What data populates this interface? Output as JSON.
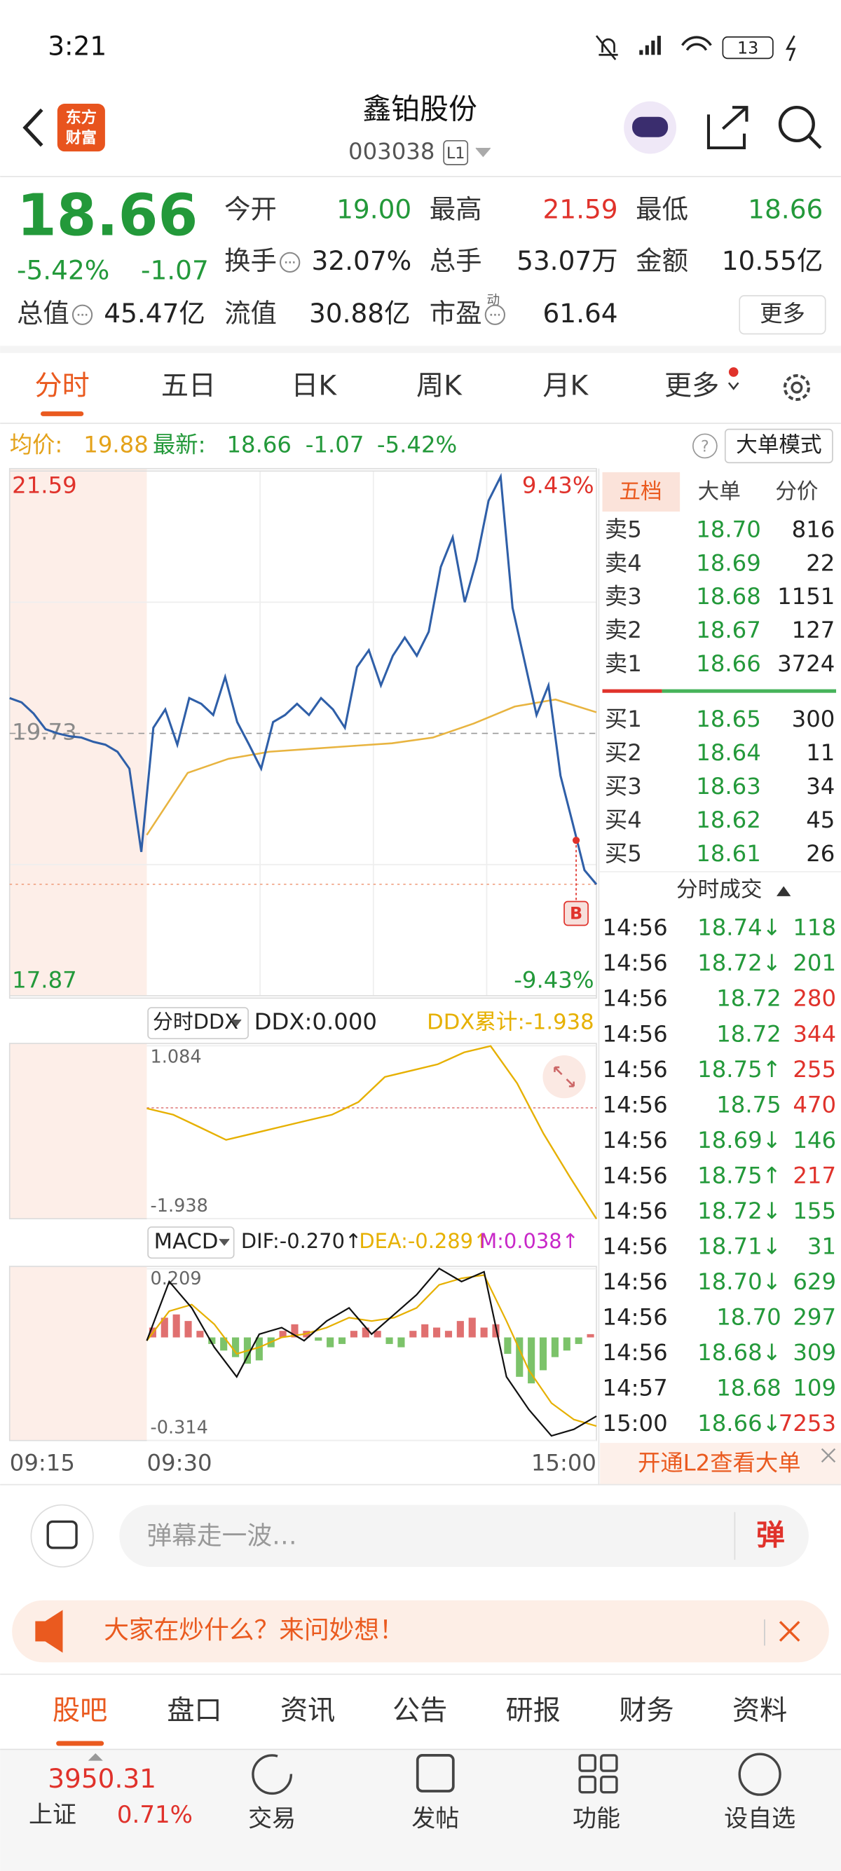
{
  "status_bar": {
    "time": "3:21",
    "battery": "13"
  },
  "header": {
    "logo": [
      "东方",
      "财富"
    ],
    "title": "鑫铂股份",
    "code": "003038",
    "level": "L1"
  },
  "quote": {
    "price": "18.66",
    "change_pct": "-5.42%",
    "change": "-1.07",
    "fields": [
      {
        "label": "今开",
        "value": "19.00",
        "color": "green"
      },
      {
        "label": "最高",
        "value": "21.59",
        "color": "red"
      },
      {
        "label": "最低",
        "value": "18.66",
        "color": "green"
      },
      {
        "label": "换手",
        "value": "32.07%",
        "color": "black"
      },
      {
        "label": "总手",
        "value": "53.07万",
        "color": "black"
      },
      {
        "label": "金额",
        "value": "10.55亿",
        "color": "black"
      },
      {
        "label": "总值",
        "value": "45.47亿",
        "color": "black"
      },
      {
        "label": "流值",
        "value": "30.88亿",
        "color": "black"
      },
      {
        "label": "市盈",
        "superscript": "动",
        "value": "61.64",
        "color": "black"
      }
    ],
    "more": "更多"
  },
  "tabs": {
    "items": [
      "分时",
      "五日",
      "日K",
      "周K",
      "月K",
      "更多"
    ],
    "active": 0
  },
  "info_bar": {
    "avg_label": "均价:",
    "avg": "19.88",
    "latest_label": "最新:",
    "latest": "18.66",
    "change": "-1.07",
    "change_pct": "-5.42%",
    "help": "?",
    "mode": "大单模式"
  },
  "price_chart": {
    "ylim": [
      17.87,
      21.59
    ],
    "yticks": [
      21.59,
      19.73,
      17.87
    ],
    "pct_labels": [
      "9.43%",
      "-9.43%"
    ],
    "marker": "B",
    "price": [
      19.98,
      19.95,
      19.87,
      19.76,
      19.73,
      19.71,
      19.7,
      19.67,
      19.65,
      19.6,
      19.48,
      18.89,
      19.77,
      19.9,
      19.65,
      19.98,
      19.94,
      19.86,
      20.13,
      19.81,
      19.65,
      19.48,
      19.81,
      19.86,
      19.94,
      19.86,
      19.98,
      19.9,
      19.77,
      20.2,
      20.32,
      20.07,
      20.28,
      20.41,
      20.28,
      20.45,
      20.91,
      21.12,
      20.66,
      20.96,
      21.38,
      21.55,
      20.62,
      20.24,
      19.86,
      20.07,
      19.43,
      19.1,
      18.76,
      18.66
    ],
    "avg": [
      19.01,
      19.45,
      19.55,
      19.6,
      19.62,
      19.64,
      19.66,
      19.7,
      19.8,
      19.92,
      19.97,
      19.88
    ]
  },
  "ddx_chart": {
    "selector": "分时DDX",
    "ddx": "DDX:0.000",
    "ddx_sum": "DDX累计:-1.938",
    "ylim": [
      -1.938,
      1.084
    ],
    "yticks": [
      1.084,
      -1.938
    ],
    "values": [
      -0.01,
      -0.12,
      -0.34,
      -0.56,
      -0.45,
      -0.34,
      -0.23,
      -0.12,
      0.1,
      0.54,
      0.65,
      0.76,
      0.97,
      1.08,
      0.43,
      -0.45,
      -1.21,
      -1.94
    ]
  },
  "macd_chart": {
    "selector": "MACD",
    "dif": "DIF:-0.270↑",
    "dea": "DEA:-0.289↑",
    "m": "M:0.038↑",
    "ylim": [
      -0.314,
      0.209
    ],
    "yticks": [
      0.209,
      -0.314
    ],
    "hist": [
      0.03,
      0.06,
      0.07,
      0.05,
      0.02,
      -0.02,
      -0.04,
      -0.06,
      -0.08,
      -0.07,
      -0.03,
      0.02,
      0.04,
      0.02,
      -0.01,
      -0.03,
      -0.02,
      0.02,
      0.03,
      0.02,
      -0.02,
      -0.03,
      0.02,
      0.04,
      0.03,
      0.02,
      0.05,
      0.06,
      0.03,
      0.04,
      -0.05,
      -0.12,
      -0.14,
      -0.1,
      -0.06,
      -0.04,
      -0.02,
      0.01
    ],
    "dif_line": [
      -0.01,
      0.17,
      0.09,
      -0.03,
      -0.12,
      0.01,
      0.03,
      -0.01,
      0.05,
      0.09,
      0.01,
      0.07,
      0.13,
      0.21,
      0.17,
      0.2,
      -0.12,
      -0.22,
      -0.3,
      -0.28,
      -0.24
    ],
    "dea_line": [
      -0.01,
      0.08,
      0.1,
      0.04,
      -0.05,
      -0.03,
      0.0,
      0.01,
      0.03,
      0.06,
      0.05,
      0.06,
      0.09,
      0.16,
      0.18,
      0.19,
      0.05,
      -0.1,
      -0.2,
      -0.25,
      -0.27
    ]
  },
  "time_axis": [
    "09:15",
    "09:30",
    "15:00"
  ],
  "order_book": {
    "tabs": [
      "五档",
      "大单",
      "分价"
    ],
    "asks": [
      {
        "label": "卖5",
        "price": "18.70",
        "volume": "816"
      },
      {
        "label": "卖4",
        "price": "18.69",
        "volume": "22"
      },
      {
        "label": "卖3",
        "price": "18.68",
        "volume": "1151"
      },
      {
        "label": "卖2",
        "price": "18.67",
        "volume": "127"
      },
      {
        "label": "卖1",
        "price": "18.66",
        "volume": "3724"
      }
    ],
    "bids": [
      {
        "label": "买1",
        "price": "18.65",
        "volume": "300"
      },
      {
        "label": "买2",
        "price": "18.64",
        "volume": "11"
      },
      {
        "label": "买3",
        "price": "18.63",
        "volume": "34"
      },
      {
        "label": "买4",
        "price": "18.62",
        "volume": "45"
      },
      {
        "label": "买5",
        "price": "18.61",
        "volume": "26"
      }
    ]
  },
  "trades_panel": {
    "title": "分时成交",
    "trades": [
      {
        "time": "14:56",
        "price": "18.74↓",
        "volume": "118",
        "color": "green"
      },
      {
        "time": "14:56",
        "price": "18.72↓",
        "volume": "201",
        "color": "green"
      },
      {
        "time": "14:56",
        "price": "18.72",
        "volume": "280",
        "color": "red"
      },
      {
        "time": "14:56",
        "price": "18.72",
        "volume": "344",
        "color": "red"
      },
      {
        "time": "14:56",
        "price": "18.75↑",
        "volume": "255",
        "color": "red"
      },
      {
        "time": "14:56",
        "price": "18.75",
        "volume": "470",
        "color": "red"
      },
      {
        "time": "14:56",
        "price": "18.69↓",
        "volume": "146",
        "color": "green"
      },
      {
        "time": "14:56",
        "price": "18.75↑",
        "volume": "217",
        "color": "red"
      },
      {
        "time": "14:56",
        "price": "18.72↓",
        "volume": "155",
        "color": "green"
      },
      {
        "time": "14:56",
        "price": "18.71↓",
        "volume": "31",
        "color": "green"
      },
      {
        "time": "14:56",
        "price": "18.70↓",
        "volume": "629",
        "color": "green"
      },
      {
        "time": "14:56",
        "price": "18.70",
        "volume": "297",
        "color": "green"
      },
      {
        "time": "14:56",
        "price": "18.68↓",
        "volume": "309",
        "color": "green"
      },
      {
        "time": "14:57",
        "price": "18.68",
        "volume": "109",
        "color": "green"
      },
      {
        "time": "15:00",
        "price": "18.66↓",
        "volume": "7253",
        "color": "red"
      }
    ]
  },
  "l2_bar": {
    "text": "开通L2查看大单"
  },
  "comment_bar": {
    "placeholder": "弹幕走一波…",
    "button": "弹"
  },
  "banner": {
    "text": "大家在炒什么？来问妙想！"
  },
  "bottom_tabs": {
    "items": [
      "股吧",
      "盘口",
      "资讯",
      "公告",
      "研报",
      "财务",
      "资料"
    ],
    "active": 0
  },
  "bottom_nav": {
    "index_value": "3950.31",
    "index_name": "上证",
    "index_pct": "0.71%",
    "items": [
      "交易",
      "发帖",
      "功能",
      "设自选"
    ]
  }
}
